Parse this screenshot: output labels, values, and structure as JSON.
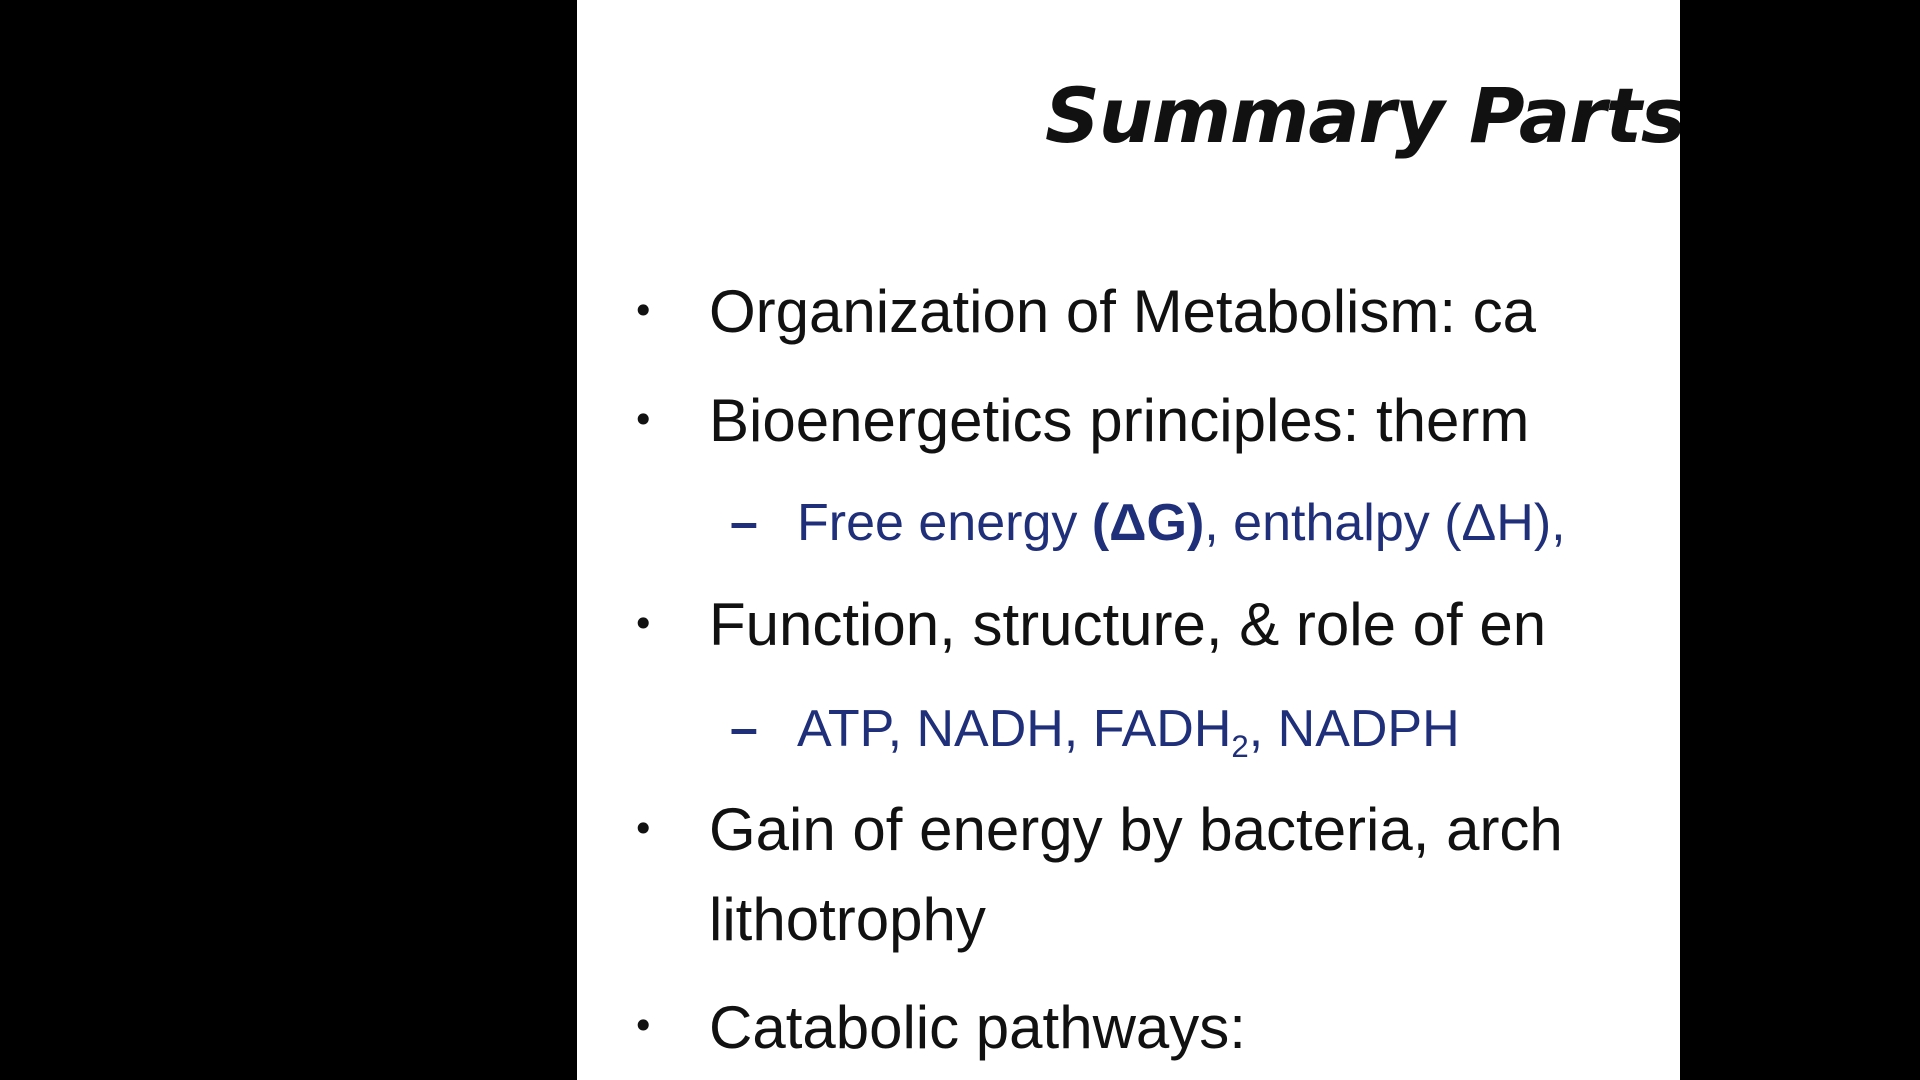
{
  "slide": {
    "title": "Summary Parts",
    "bullets": [
      {
        "text": "Organization of Metabolism:  ca"
      },
      {
        "text": "Bioenergetics principles:  therm"
      },
      {
        "sub_parts": {
          "p1": "Free energy ",
          "p2": "(ΔG)",
          "p3": ", enthalpy (ΔH), "
        }
      },
      {
        "text": "Function, structure, & role of en"
      },
      {
        "sub_parts": {
          "p1": "ATP, NADH, FADH",
          "p2": "2",
          "p3": ", NADPH"
        }
      },
      {
        "text": "Gain of energy by bacteria, arch",
        "text2": "lithotrophy"
      },
      {
        "text": "Catabolic pathways:"
      }
    ],
    "bullet_char": "•",
    "dash_char": "–"
  },
  "colors": {
    "background": "#000000",
    "slide": "#ffffff",
    "text": "#111111",
    "subtext": "#1f2f7a"
  }
}
